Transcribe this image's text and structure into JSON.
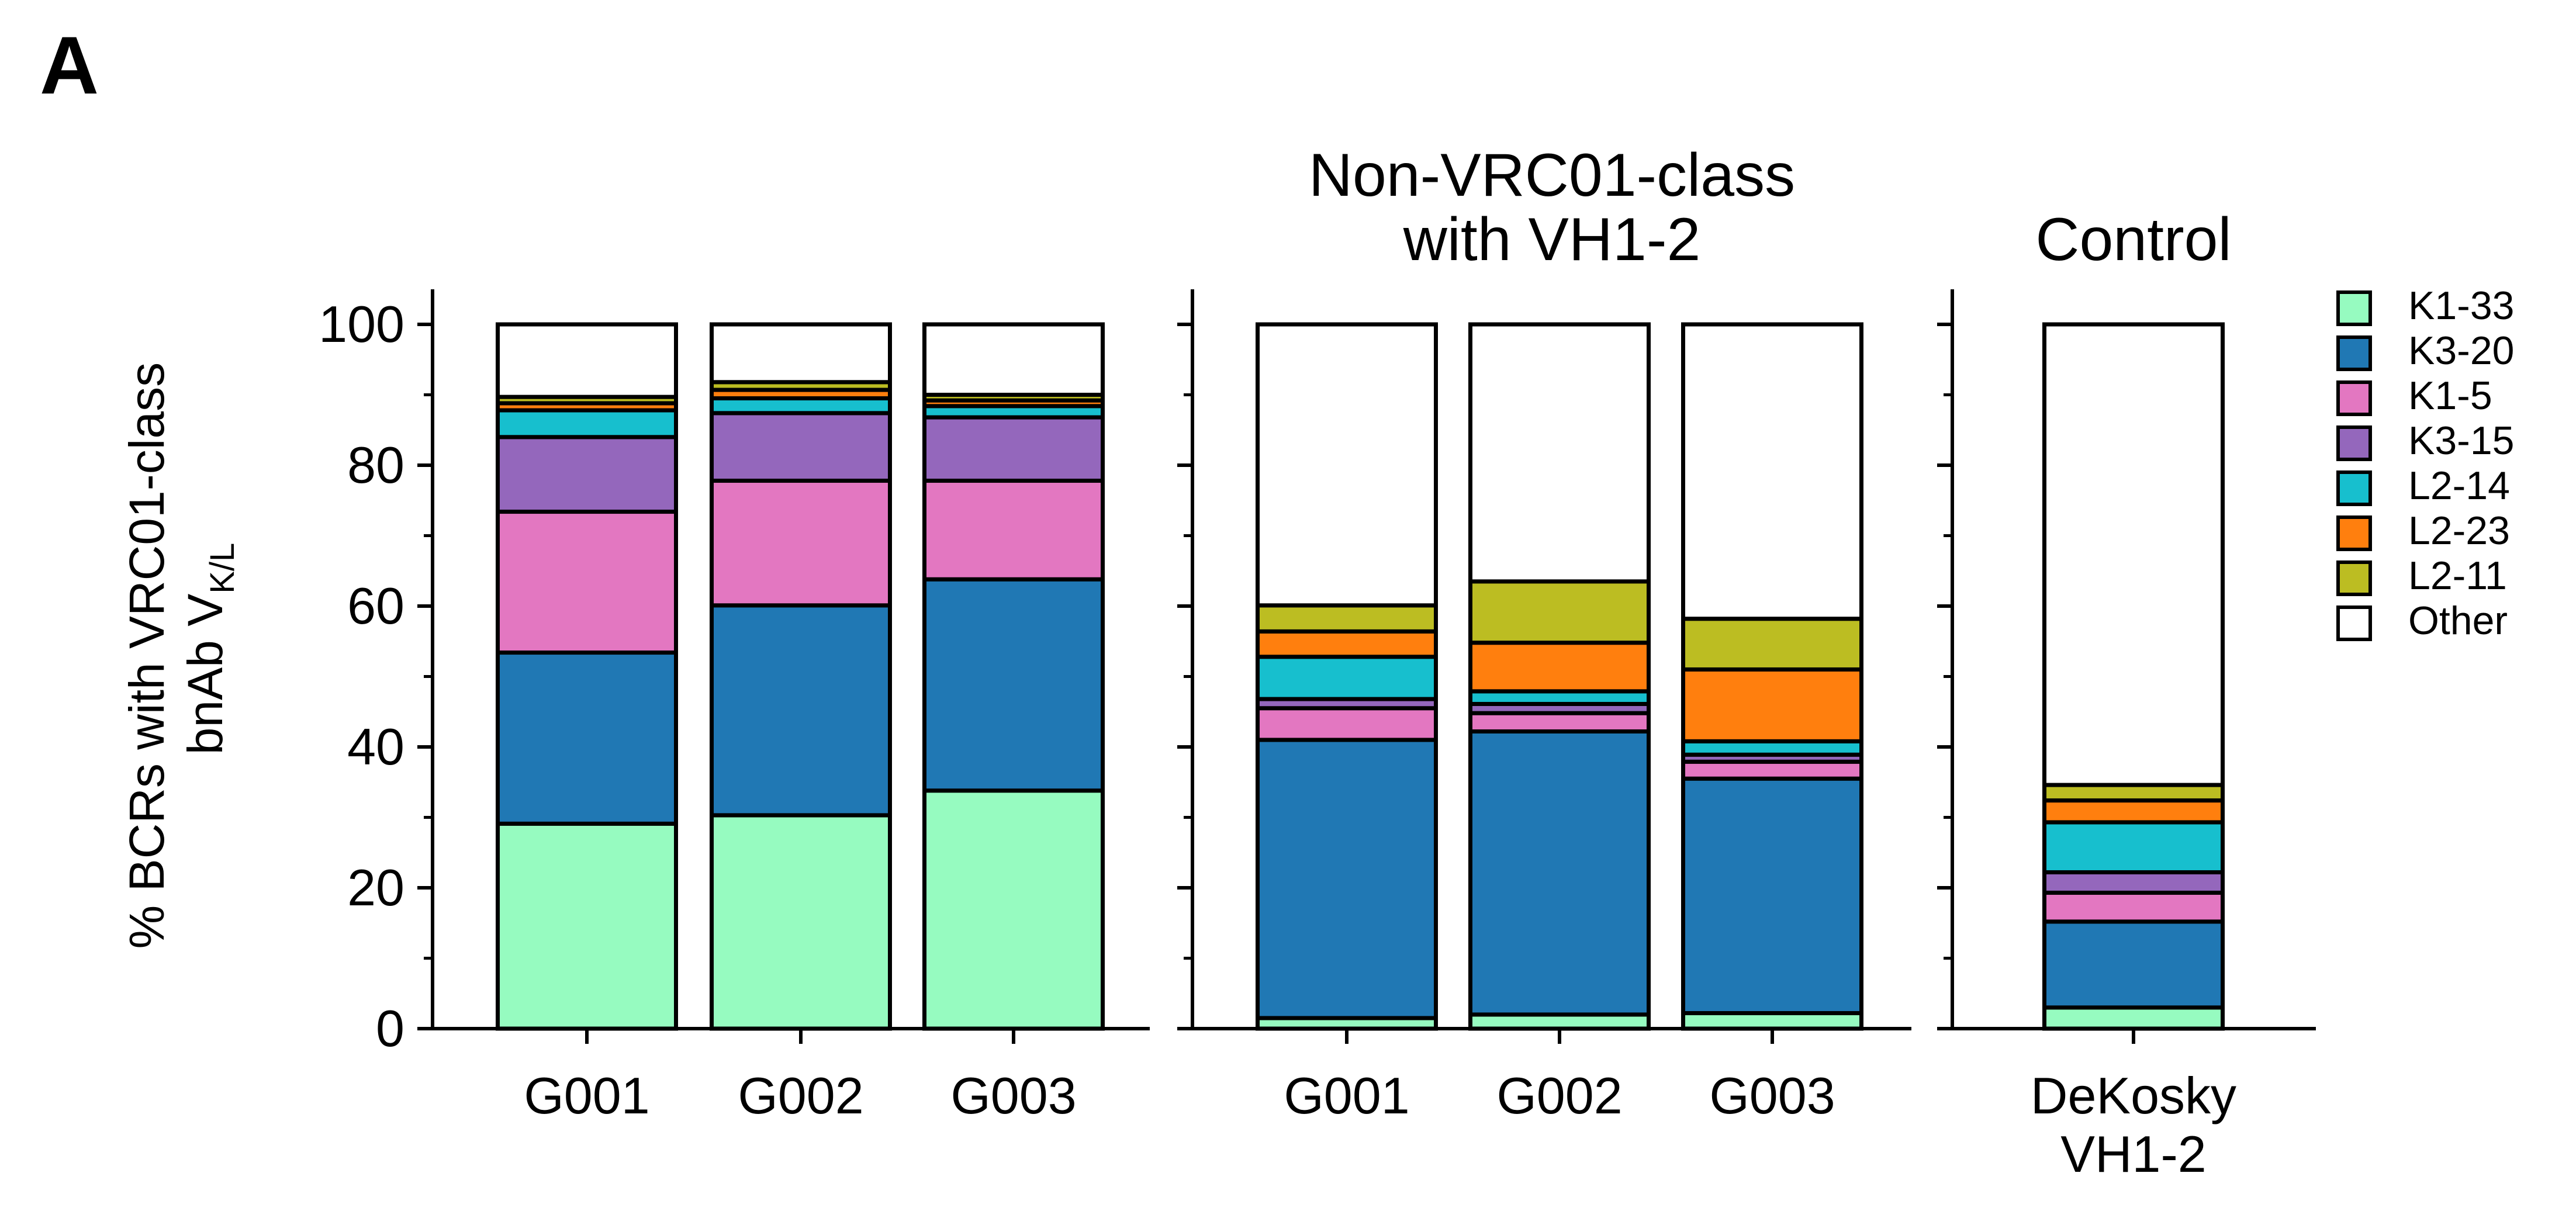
{
  "figure": {
    "panel_letter": "A",
    "ylabel_line1": "% BCRs with VRC01-class",
    "ylabel_line2_prefix": "bnAb V",
    "ylabel_subscript": "K/L"
  },
  "chart_data": {
    "type": "bar",
    "stacked": true,
    "ylim": [
      0,
      100
    ],
    "yticks": [
      0,
      20,
      40,
      60,
      80,
      100
    ],
    "yticks_minor": [
      10,
      30,
      50,
      70,
      90
    ],
    "grid": false,
    "legend_position": "right",
    "colors": {
      "K1-33": "#96fbc0",
      "K3-20": "#2078b4",
      "K1-5": "#e377c1",
      "K3-15": "#9467bc",
      "L2-14": "#17bfce",
      "L2-23": "#ff7f0e",
      "L2-11": "#bcbd22",
      "Other": "#ffffff"
    },
    "series_order": [
      "K1-33",
      "K3-20",
      "K1-5",
      "K3-15",
      "L2-14",
      "L2-23",
      "L2-11",
      "Other"
    ],
    "panels": [
      {
        "title_lines": [],
        "categories": [
          [
            "G001"
          ],
          [
            "G002"
          ],
          [
            "G003"
          ]
        ],
        "bars": [
          {
            "K1-33": 29.1,
            "K3-20": 24.3,
            "K1-5": 20.0,
            "K3-15": 10.6,
            "L2-14": 3.8,
            "L2-23": 1.0,
            "L2-11": 0.9,
            "Other": 10.3
          },
          {
            "K1-33": 30.3,
            "K3-20": 29.8,
            "K1-5": 17.7,
            "K3-15": 9.6,
            "L2-14": 2.1,
            "L2-23": 1.2,
            "L2-11": 1.1,
            "Other": 8.2
          },
          {
            "K1-33": 33.8,
            "K3-20": 30.0,
            "K1-5": 14.0,
            "K3-15": 9.0,
            "L2-14": 1.6,
            "L2-23": 0.8,
            "L2-11": 0.8,
            "Other": 10.0
          }
        ]
      },
      {
        "title_lines": [
          "Non-VRC01-class",
          "with VH1-2"
        ],
        "categories": [
          [
            "G001"
          ],
          [
            "G002"
          ],
          [
            "G003"
          ]
        ],
        "bars": [
          {
            "K1-33": 1.5,
            "K3-20": 39.5,
            "K1-5": 4.5,
            "K3-15": 1.3,
            "L2-14": 6.0,
            "L2-23": 3.6,
            "L2-11": 3.7,
            "Other": 39.9
          },
          {
            "K1-33": 2.0,
            "K3-20": 40.2,
            "K1-5": 2.6,
            "K3-15": 1.3,
            "L2-14": 1.8,
            "L2-23": 6.9,
            "L2-11": 8.7,
            "Other": 36.5
          },
          {
            "K1-33": 2.2,
            "K3-20": 33.3,
            "K1-5": 2.4,
            "K3-15": 1.0,
            "L2-14": 1.9,
            "L2-23": 10.2,
            "L2-11": 7.2,
            "Other": 41.8
          }
        ]
      },
      {
        "title_lines": [
          "Control"
        ],
        "categories": [
          [
            "DeKosky",
            "VH1-2"
          ]
        ],
        "bars": [
          {
            "K1-33": 3.0,
            "K3-20": 12.2,
            "K1-5": 4.1,
            "K3-15": 2.9,
            "L2-14": 7.1,
            "L2-23": 3.1,
            "L2-11": 2.2,
            "Other": 65.4
          }
        ]
      }
    ]
  }
}
